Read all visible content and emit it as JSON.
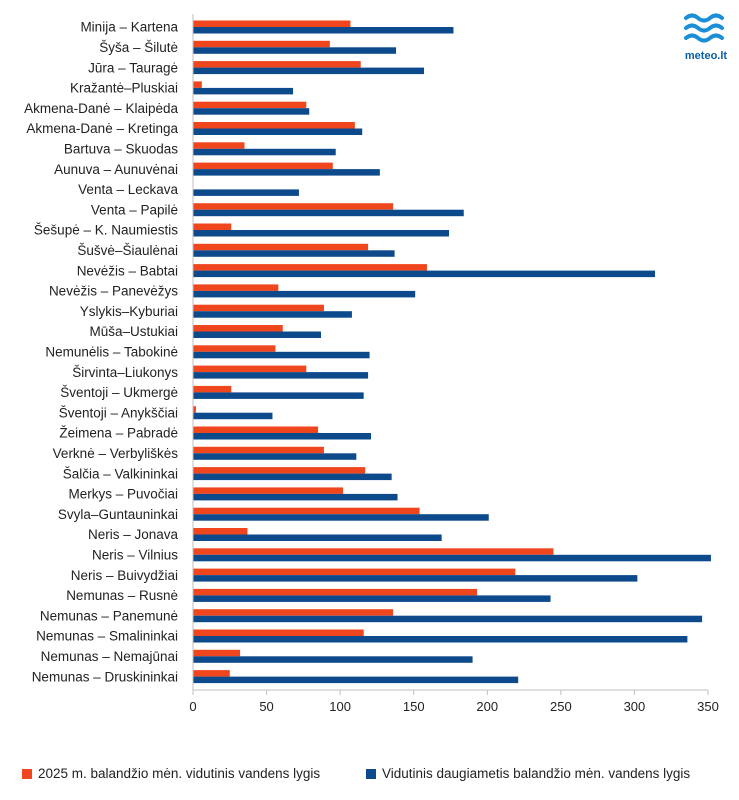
{
  "logo": {
    "text": "meteo.lt",
    "color": "#1a8fd8"
  },
  "chart_data": {
    "type": "bar",
    "orientation": "horizontal",
    "title": "",
    "xlabel": "",
    "ylabel": "",
    "xlim": [
      0,
      350
    ],
    "xticks": [
      0,
      50,
      100,
      150,
      200,
      250,
      300,
      350
    ],
    "grid": false,
    "legend_position": "bottom",
    "categories": [
      "Minija – Kartena",
      "Šyša – Šilutė",
      "Jūra – Tauragė",
      "Kražantė–Pluskiai",
      "Akmena-Danė – Klaipėda",
      "Akmena-Danė – Kretinga",
      "Bartuva – Skuodas",
      "Aunuva – Aunuvėnai",
      "Venta – Leckava",
      "Venta – Papilė",
      "Šešupė – K. Naumiestis",
      "Šušvė–Šiaulėnai",
      "Nevėžis – Babtai",
      "Nevėžis – Panevėžys",
      "Yslykis–Kyburiai",
      "Mūša–Ustukiai",
      "Nemunėlis – Tabokinė",
      "Širvinta–Liukonys",
      "Šventoji – Ukmergė",
      "Šventoji – Anykščiai",
      "Žeimena – Pabradė",
      "Verknė – Verbyliškės",
      "Šalčia – Valkininkai",
      "Merkys – Puvočiai",
      "Svyla–Guntauninkai",
      "Neris – Jonava",
      "Neris – Vilnius",
      "Neris – Buivydžiai",
      "Nemunas – Rusnė",
      "Nemunas – Panemunė",
      "Nemunas – Smalininkai",
      "Nemunas – Nemajūnai",
      "Nemunas – Druskininkai"
    ],
    "series": [
      {
        "name": "2025 m. balandžio mėn. vidutinis vandens lygis",
        "color": "#f0461e",
        "values": [
          107,
          93,
          114,
          6,
          77,
          110,
          35,
          95,
          0,
          136,
          26,
          119,
          159,
          58,
          89,
          61,
          56,
          77,
          26,
          2,
          85,
          89,
          117,
          102,
          154,
          37,
          245,
          219,
          193,
          136,
          116,
          32,
          25
        ]
      },
      {
        "name": "Vidutinis daugiametis balandžio mėn. vandens lygis",
        "color": "#0d4a8c",
        "values": [
          177,
          138,
          157,
          68,
          79,
          115,
          97,
          127,
          72,
          184,
          174,
          137,
          314,
          151,
          108,
          87,
          120,
          119,
          116,
          54,
          121,
          111,
          135,
          139,
          201,
          169,
          352,
          302,
          243,
          346,
          336,
          190,
          221
        ]
      }
    ]
  }
}
